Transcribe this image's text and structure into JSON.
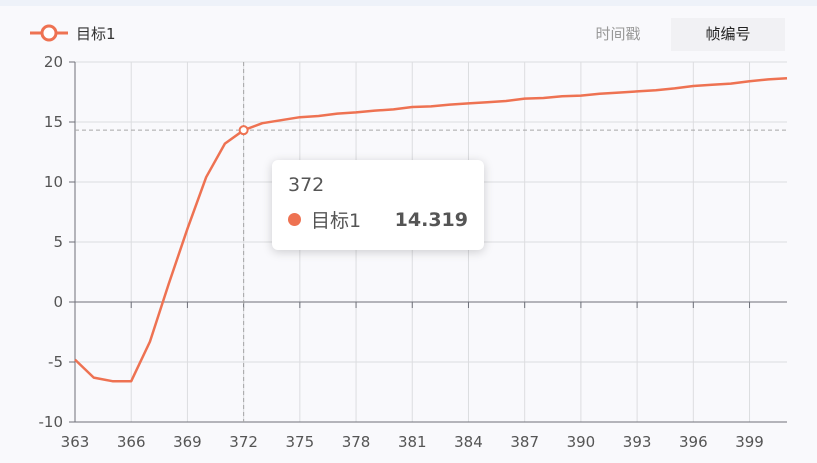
{
  "legend": {
    "series_label": "目标1"
  },
  "mode_toggle": {
    "options": [
      "时间戳",
      "帧编号"
    ],
    "active_index": 1
  },
  "tooltip": {
    "title": "372",
    "series": "目标1",
    "value": "14.319"
  },
  "colors": {
    "series": "#ee7252",
    "axis": "#6e7079",
    "grid": "#dcdde0",
    "crosshair": "#a7a7a7"
  },
  "chart_data": {
    "type": "line",
    "title": "",
    "xlabel": "",
    "ylabel": "",
    "xlim": [
      363,
      401
    ],
    "ylim": [
      -10,
      20
    ],
    "x_ticks": [
      363,
      366,
      369,
      372,
      375,
      378,
      381,
      384,
      387,
      390,
      393,
      396,
      399
    ],
    "y_ticks": [
      -10,
      -5,
      0,
      5,
      10,
      15,
      20
    ],
    "grid": true,
    "legend_position": "top-left",
    "series": [
      {
        "name": "目标1",
        "x": [
          363,
          364,
          365,
          366,
          367,
          368,
          369,
          370,
          371,
          372,
          373,
          374,
          375,
          376,
          377,
          378,
          379,
          380,
          381,
          382,
          383,
          384,
          385,
          386,
          387,
          388,
          389,
          390,
          391,
          392,
          393,
          394,
          395,
          396,
          397,
          398,
          399,
          400,
          401
        ],
        "values": [
          -4.8,
          -6.3,
          -6.6,
          -6.6,
          -3.3,
          1.5,
          6.1,
          10.4,
          13.2,
          14.319,
          14.9,
          15.15,
          15.4,
          15.5,
          15.7,
          15.8,
          15.95,
          16.05,
          16.25,
          16.3,
          16.45,
          16.55,
          16.65,
          16.75,
          16.95,
          17.0,
          17.15,
          17.2,
          17.35,
          17.45,
          17.55,
          17.65,
          17.8,
          18.0,
          18.1,
          18.2,
          18.4,
          18.55,
          18.65
        ]
      }
    ],
    "highlight": {
      "x": 372,
      "y": 14.319
    }
  }
}
